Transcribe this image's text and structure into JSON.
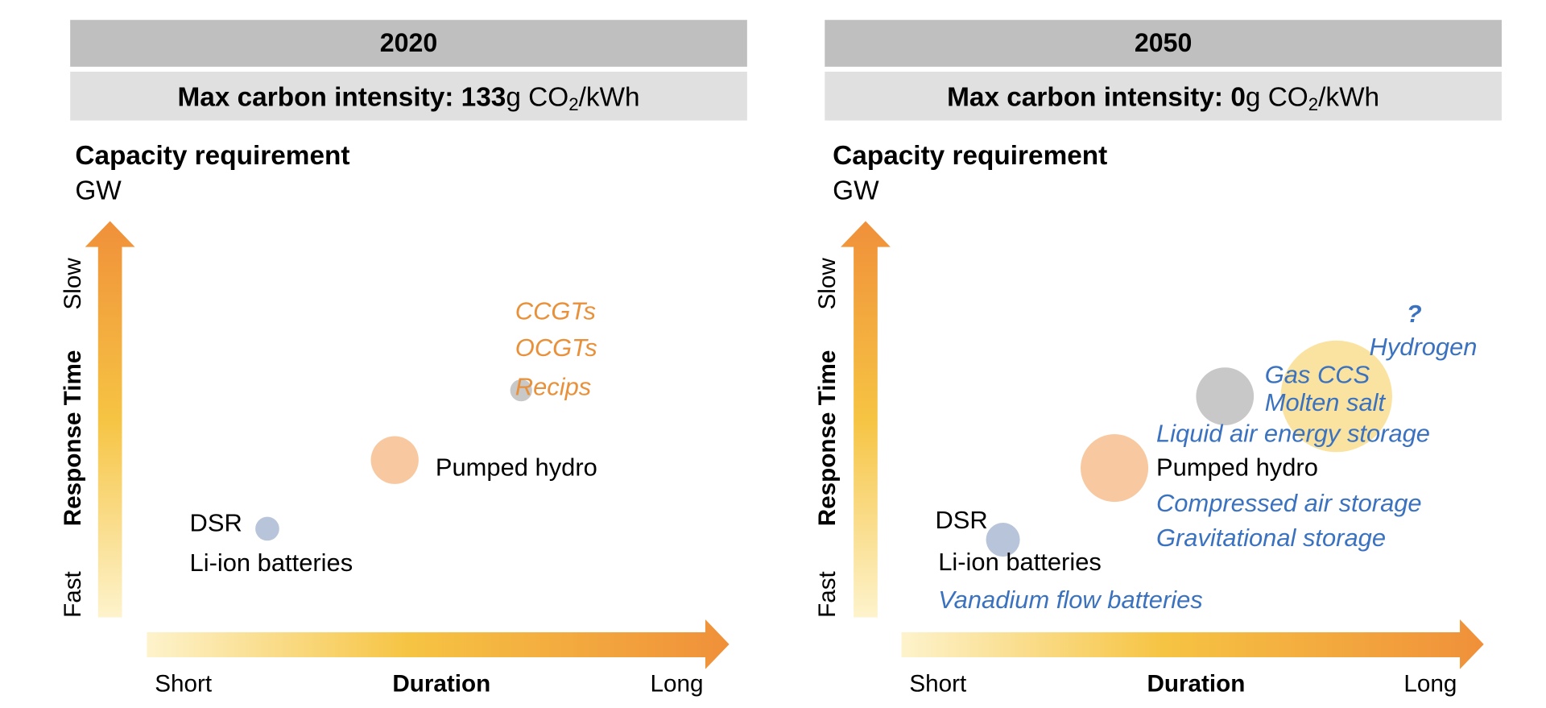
{
  "panels": [
    {
      "year": "2020",
      "subtitle": {
        "label": "Max carbon intensity:",
        "value": "133",
        "unit": "g CO",
        "sub": "2",
        "unit_end": "/kWh"
      },
      "y_title": "Capacity requirement",
      "y_unit": "GW",
      "y_slow": "Slow",
      "y_axis": "Response Time",
      "y_fast": "Fast",
      "x_short": "Short",
      "x_axis": "Duration",
      "x_long": "Long",
      "items": [
        "CCGTs",
        "OCGTs",
        "Recips",
        "Pumped hydro",
        "DSR",
        "Li-ion batteries"
      ]
    },
    {
      "year": "2050",
      "subtitle": {
        "label": "Max carbon intensity:",
        "value": "0",
        "unit": "g CO",
        "sub": "2",
        "unit_end": "/kWh"
      },
      "y_title": "Capacity requirement",
      "y_unit": "GW",
      "y_slow": "Slow",
      "y_axis": "Response Time",
      "y_fast": "Fast",
      "x_short": "Short",
      "x_axis": "Duration",
      "x_long": "Long",
      "items": [
        "?",
        "Hydrogen",
        "Gas CCS",
        "Molten salt",
        "Liquid air energy storage",
        "Pumped hydro",
        "Compressed air storage",
        "Gravitational storage",
        "DSR",
        "Li-ion batteries",
        "Vanadium flow batteries"
      ]
    }
  ]
}
